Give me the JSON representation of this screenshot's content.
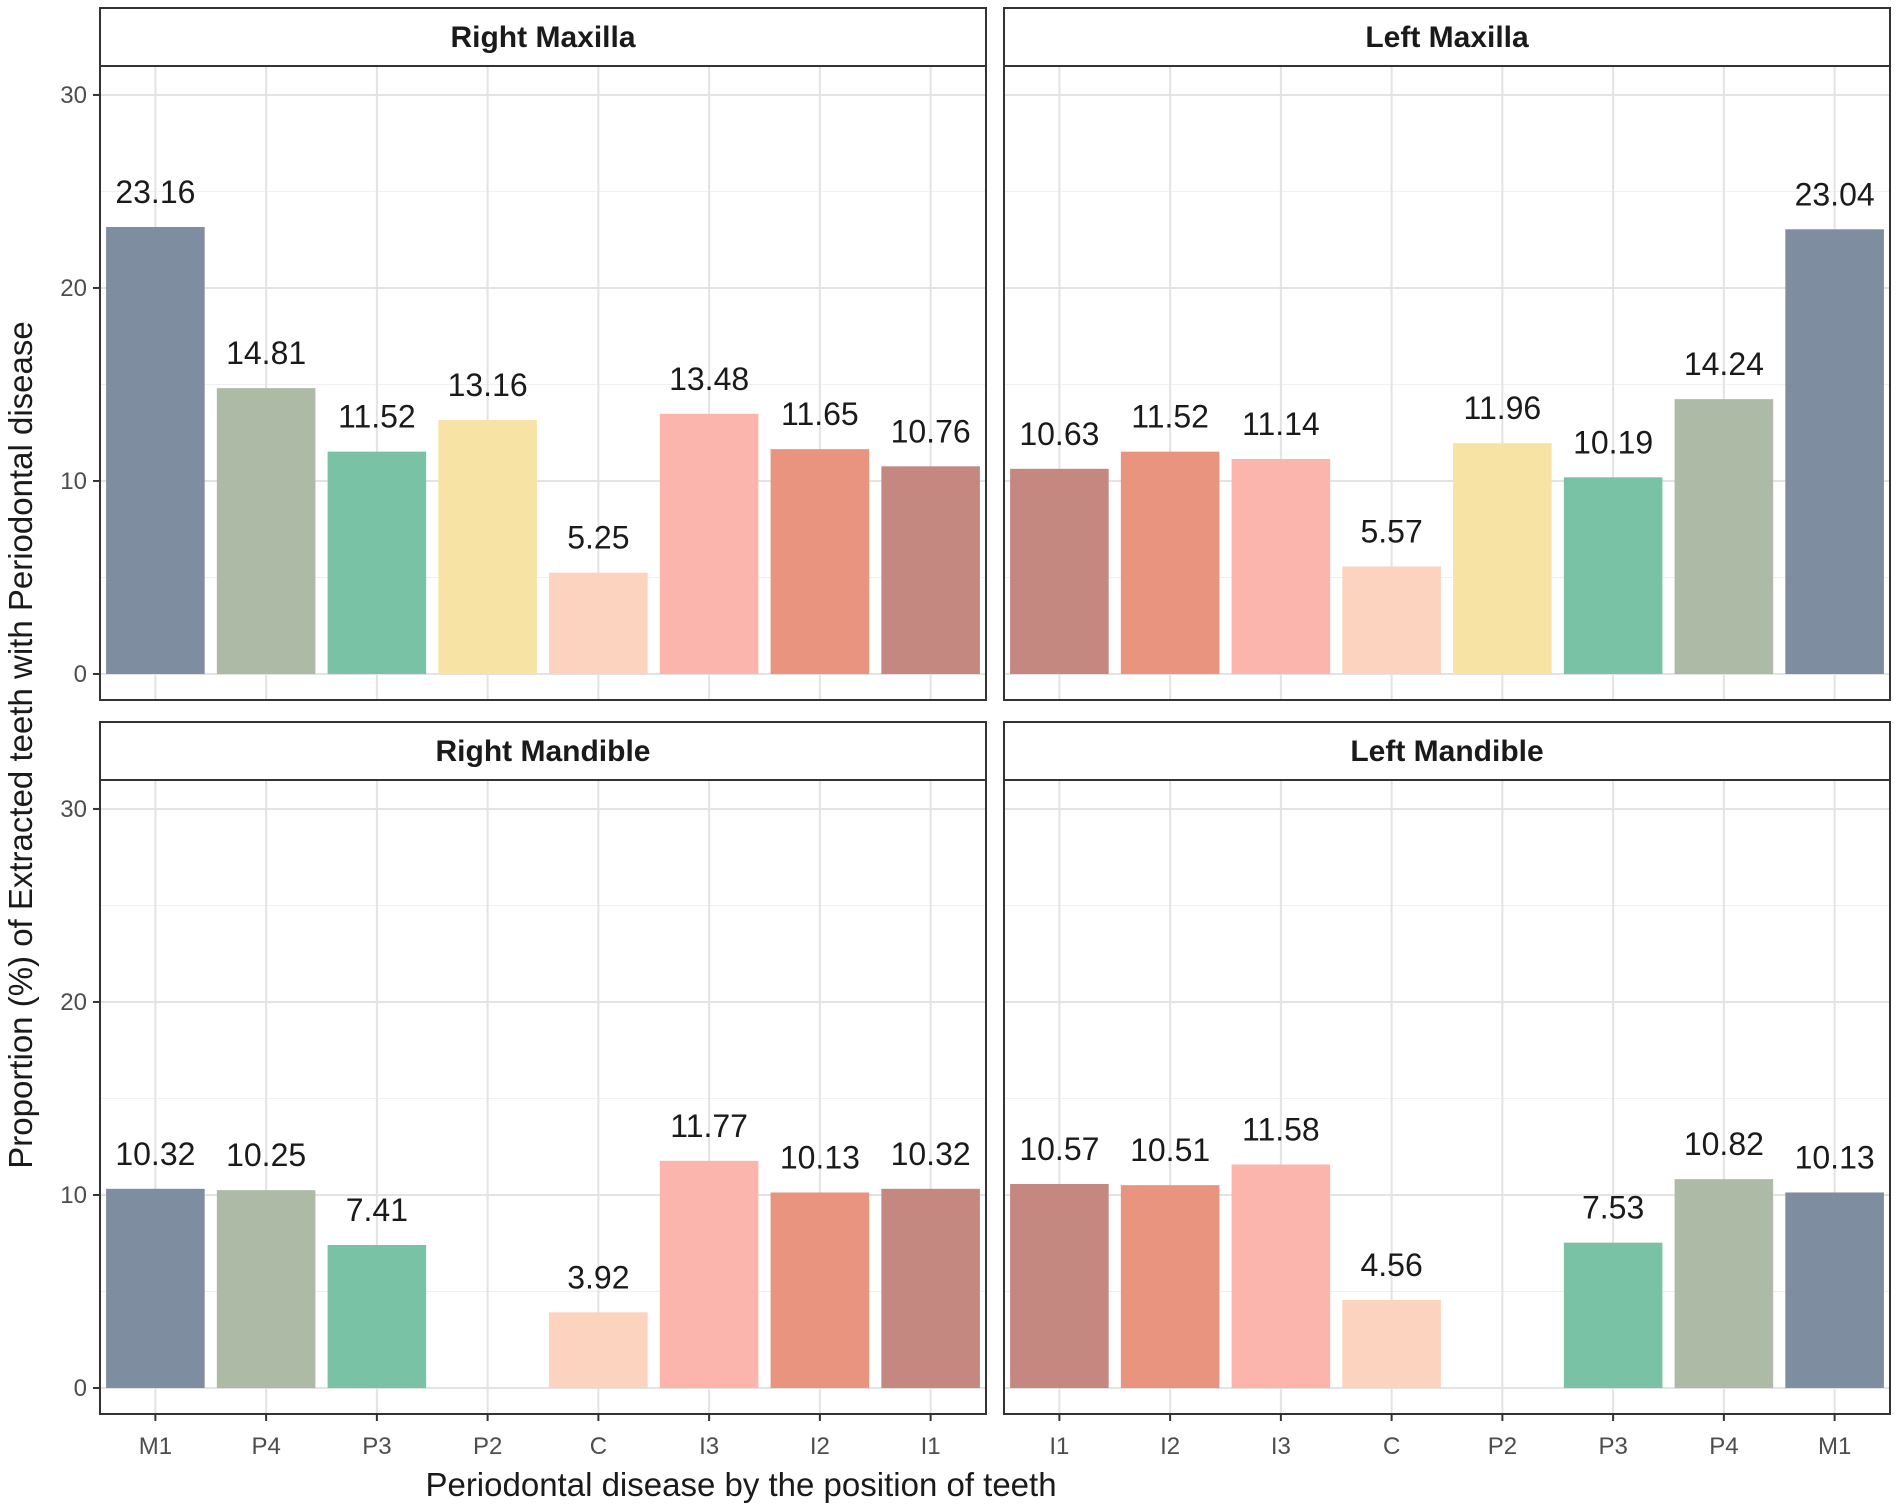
{
  "chart_data": {
    "type": "bar",
    "xlabel": "Periodontal disease by the position of teeth",
    "ylabel": "Proportion (%) of Extracted teeth with Periodontal disease",
    "ylim": [
      0,
      31.5
    ],
    "yticks": [
      "0",
      "10",
      "20",
      "30"
    ],
    "grid": true,
    "colors": {
      "M1": "#7f8da1",
      "P4": "#adbaa5",
      "P3": "#7ac2a6",
      "P2": "#f7e3a4",
      "C": "#fbd3be",
      "I3": "#fbb5ad",
      "I2": "#e9947e",
      "I1": "#c48880"
    },
    "panels": [
      {
        "title": "Right Maxilla",
        "categories": [
          "M1",
          "P4",
          "P3",
          "P2",
          "C",
          "I3",
          "I2",
          "I1"
        ],
        "values": [
          23.16,
          14.81,
          11.52,
          13.16,
          5.25,
          13.48,
          11.65,
          10.76
        ],
        "labels": [
          "23.16",
          "14.81",
          "11.52",
          "13.16",
          "5.25",
          "13.48",
          "11.65",
          "10.76"
        ]
      },
      {
        "title": "Left Maxilla",
        "categories": [
          "I1",
          "I2",
          "I3",
          "C",
          "P2",
          "P3",
          "P4",
          "M1"
        ],
        "values": [
          10.63,
          11.52,
          11.14,
          5.57,
          11.96,
          10.19,
          14.24,
          23.04
        ],
        "labels": [
          "10.63",
          "11.52",
          "11.14",
          "5.57",
          "11.96",
          "10.19",
          "14.24",
          "23.04"
        ]
      },
      {
        "title": "Right Mandible",
        "categories": [
          "M1",
          "P4",
          "P3",
          "P2",
          "C",
          "I3",
          "I2",
          "I1"
        ],
        "values": [
          10.32,
          10.25,
          7.41,
          null,
          3.92,
          11.77,
          10.13,
          10.32
        ],
        "labels": [
          "10.32",
          "10.25",
          "7.41",
          null,
          "3.92",
          "11.77",
          "10.13",
          "10.32"
        ]
      },
      {
        "title": "Left Mandible",
        "categories": [
          "I1",
          "I2",
          "I3",
          "C",
          "P2",
          "P3",
          "P4",
          "M1"
        ],
        "values": [
          10.57,
          10.51,
          11.58,
          4.56,
          null,
          7.53,
          10.82,
          10.13
        ],
        "labels": [
          "10.57",
          "10.51",
          "11.58",
          "4.56",
          null,
          "7.53",
          "10.82",
          "10.13"
        ]
      }
    ]
  }
}
